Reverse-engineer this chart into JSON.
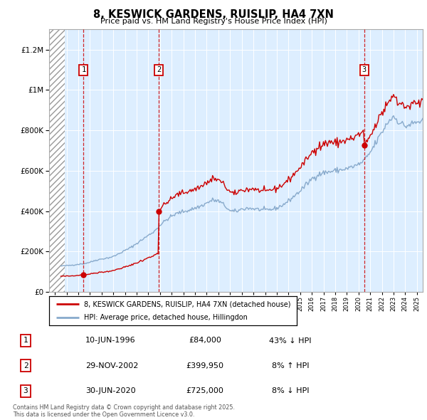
{
  "title": "8, KESWICK GARDENS, RUISLIP, HA4 7XN",
  "subtitle": "Price paid vs. HM Land Registry's House Price Index (HPI)",
  "legend_line1": "8, KESWICK GARDENS, RUISLIP, HA4 7XN (detached house)",
  "legend_line2": "HPI: Average price, detached house, Hillingdon",
  "footer": "Contains HM Land Registry data © Crown copyright and database right 2025.\nThis data is licensed under the Open Government Licence v3.0.",
  "sale_points": [
    {
      "num": 1,
      "date": "10-JUN-1996",
      "year": 1996.45,
      "price": 84000,
      "pct": "43% ↓ HPI"
    },
    {
      "num": 2,
      "date": "29-NOV-2002",
      "year": 2002.91,
      "price": 399950,
      "pct": "8% ↑ HPI"
    },
    {
      "num": 3,
      "date": "30-JUN-2020",
      "year": 2020.49,
      "price": 725000,
      "pct": "8% ↓ HPI"
    }
  ],
  "line_color_red": "#cc0000",
  "line_color_blue": "#88aacc",
  "bg_color": "#ddeeff",
  "ylim": [
    0,
    1300000
  ],
  "xlim": [
    1993.5,
    2025.5
  ],
  "hatch_end": 1994.83
}
